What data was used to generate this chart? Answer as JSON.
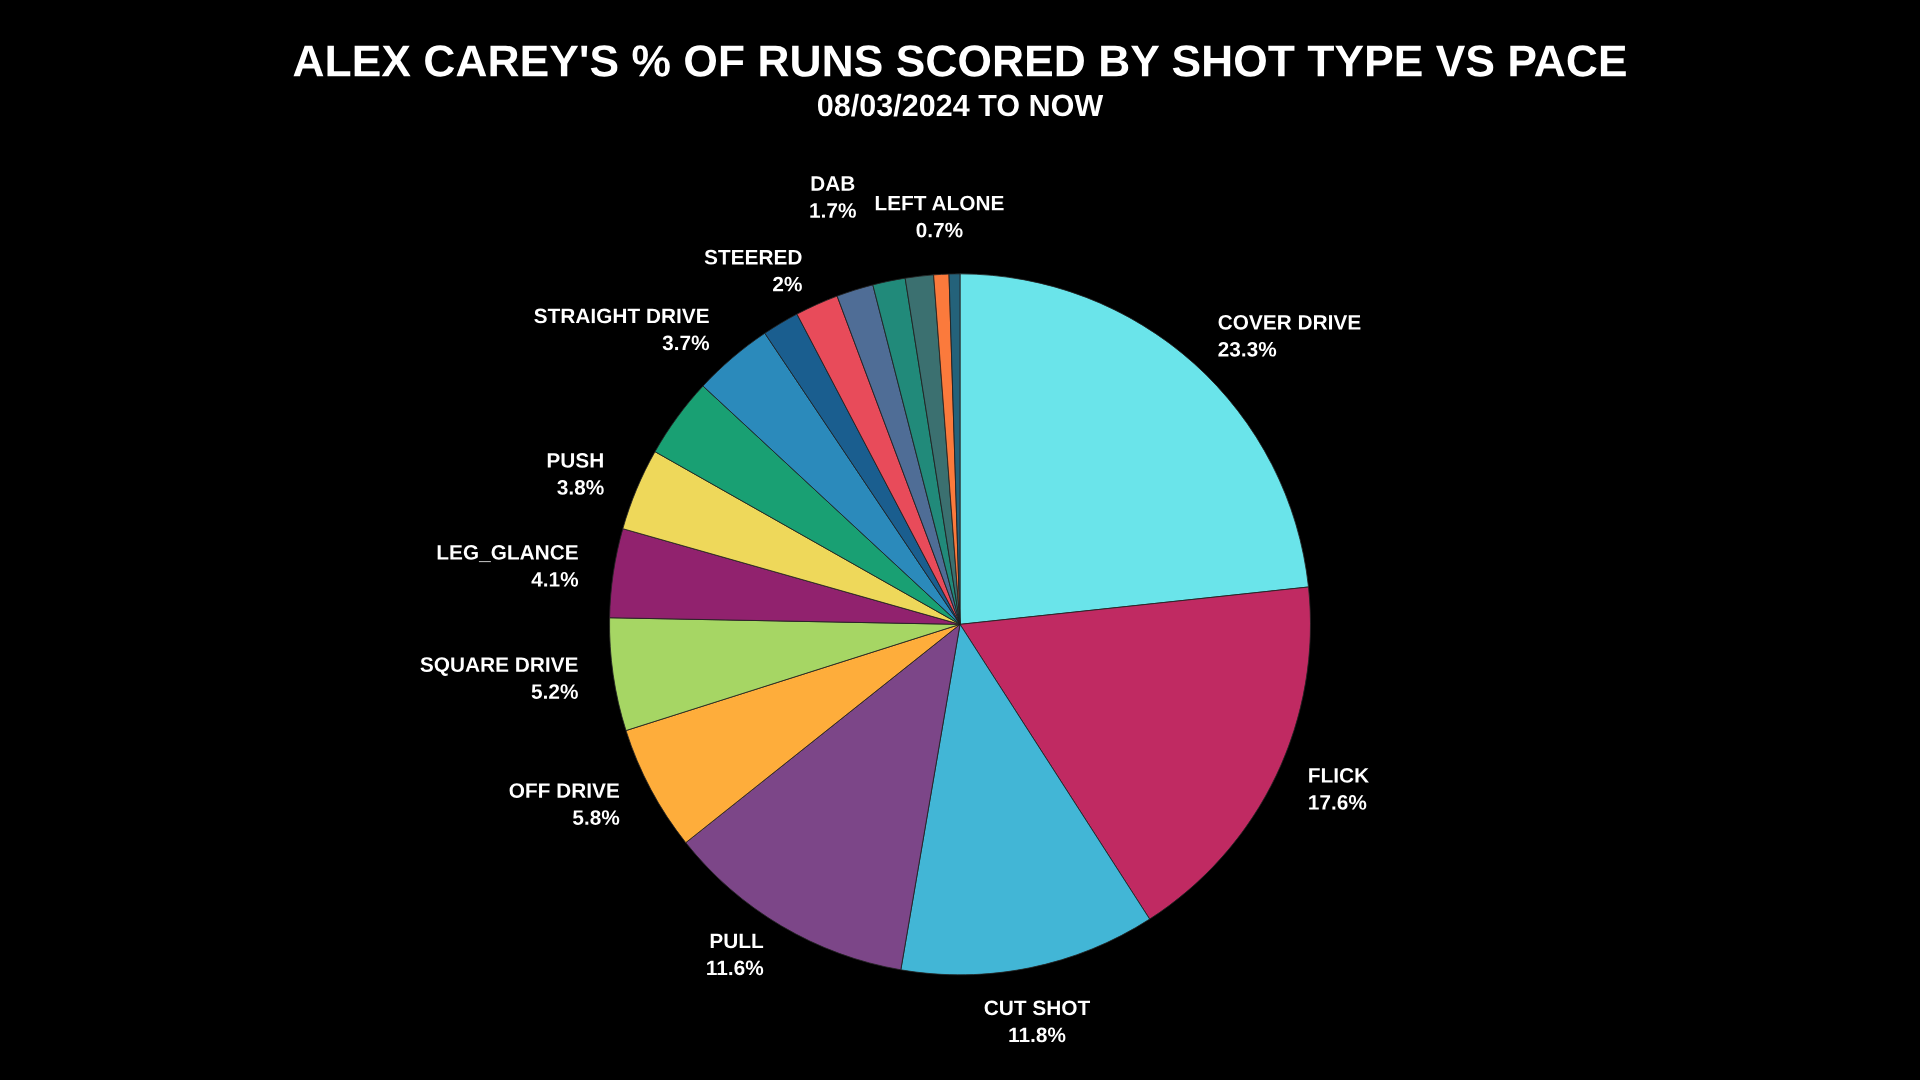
{
  "chart_data": {
    "type": "pie",
    "title": "ALEX CAREY'S % OF RUNS SCORED BY SHOT TYPE VS PACE",
    "subtitle": "08/03/2024 TO NOW",
    "categories": [
      "COVER DRIVE",
      "FLICK",
      "CUT SHOT",
      "PULL",
      "OFF DRIVE",
      "SQUARE DRIVE",
      "LEG_GLANCE",
      "PUSH",
      null,
      "STRAIGHT DRIVE",
      null,
      "STEERED",
      "DAB",
      null,
      null,
      "LEFT ALONE",
      null
    ],
    "values": [
      23.3,
      17.6,
      11.8,
      11.6,
      5.8,
      5.2,
      4.1,
      3.8,
      3.7,
      3.7,
      1.7,
      2,
      1.7,
      1.5,
      1.3,
      0.7,
      0.5
    ],
    "value_labels": [
      "23.3%",
      "17.6%",
      "11.8%",
      "11.6%",
      "5.8%",
      "5.2%",
      "4.1%",
      "3.8%",
      null,
      "3.7%",
      null,
      "2%",
      "1.7%",
      null,
      null,
      "0.7%",
      null
    ],
    "colors": [
      "#6ae4ea",
      "#c02a62",
      "#42b6d6",
      "#7c4688",
      "#fead3b",
      "#a6d664",
      "#91226e",
      "#eed85a",
      "#19a073",
      "#2b8abb",
      "#1a5e8f",
      "#e84b5a",
      "#4f6d96",
      "#218a7a",
      "#3b7070",
      "#fb7a3c",
      "#24627a"
    ]
  }
}
